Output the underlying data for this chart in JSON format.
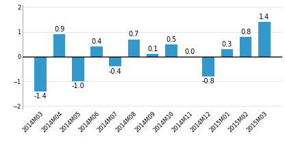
{
  "categories": [
    "2014M03",
    "2014M04",
    "2014M05",
    "2014M06",
    "2014M07",
    "2014M08",
    "2014M09",
    "2014M10",
    "2014M11",
    "2014M12",
    "2015M01",
    "2015M02",
    "2015M03"
  ],
  "values": [
    -1.4,
    0.9,
    -1.0,
    0.4,
    -0.4,
    0.7,
    0.1,
    0.5,
    0.0,
    -0.8,
    0.3,
    0.8,
    1.4
  ],
  "bar_color": "#3399cc",
  "ylim": [
    -2.1,
    2.1
  ],
  "yticks": [
    -2,
    -1,
    0,
    1,
    2
  ],
  "background_color": "#ffffff",
  "label_fontsize": 7.0,
  "tick_fontsize": 6.0,
  "bar_width": 0.65,
  "grid_color": "#dddddd"
}
